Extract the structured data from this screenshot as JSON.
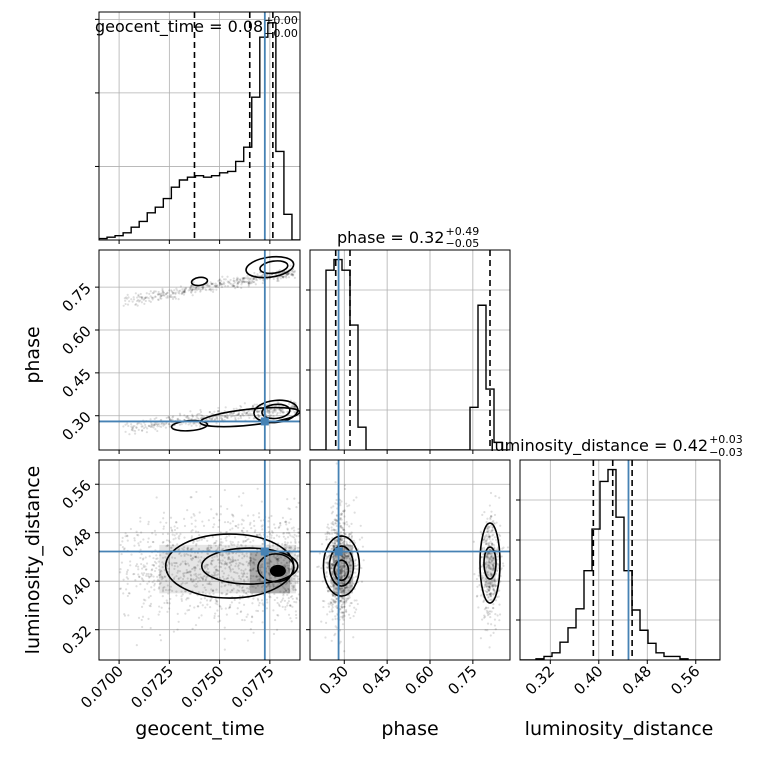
{
  "chart_data": {
    "type": "corner",
    "parameters": [
      {
        "name": "geocent_time",
        "axis_label": "geocent_time",
        "range": [
          0.069,
          0.079
        ],
        "ticks": [
          0.07,
          0.0725,
          0.075,
          0.0775
        ],
        "tick_labels": [
          "0.0700",
          "0.0725",
          "0.0750",
          "0.0775"
        ],
        "title": {
          "text": "geocent_time = 0.08",
          "sup": "+0.00",
          "sub": "−0.00"
        },
        "truth": 0.07725,
        "quantiles": [
          0.07375,
          0.0765,
          0.07765
        ],
        "histogram": {
          "bin_edges": [
            0.069,
            0.0694,
            0.0698,
            0.0702,
            0.0706,
            0.071,
            0.0714,
            0.0718,
            0.0722,
            0.0726,
            0.073,
            0.0734,
            0.0738,
            0.0742,
            0.0746,
            0.075,
            0.0754,
            0.0758,
            0.0762,
            0.0766,
            0.077,
            0.0774,
            0.0778,
            0.0782,
            0.0786,
            0.079
          ],
          "counts": [
            1,
            2,
            3,
            5,
            9,
            13,
            19,
            23,
            29,
            37,
            42,
            44,
            45,
            44,
            45,
            47,
            48,
            55,
            65,
            100,
            142,
            152,
            62,
            18,
            0
          ]
        }
      },
      {
        "name": "phase",
        "axis_label": "phase",
        "range": [
          0.18,
          0.88
        ],
        "ticks": [
          0.3,
          0.45,
          0.6,
          0.75
        ],
        "tick_labels": [
          "0.30",
          "0.45",
          "0.60",
          "0.75"
        ],
        "title": {
          "text": "phase = 0.32",
          "sup": "+0.49",
          "sub": "−0.05"
        },
        "truth": 0.28,
        "quantiles": [
          0.27,
          0.32,
          0.81
        ],
        "histogram": {
          "bin_edges": [
            0.18,
            0.208,
            0.236,
            0.264,
            0.292,
            0.32,
            0.348,
            0.376,
            0.404,
            0.432,
            0.46,
            0.488,
            0.516,
            0.544,
            0.572,
            0.6,
            0.628,
            0.656,
            0.684,
            0.712,
            0.74,
            0.768,
            0.796,
            0.824,
            0.852,
            0.88
          ],
          "counts": [
            0,
            0,
            118,
            125,
            118,
            82,
            15,
            0,
            0,
            0,
            0,
            0,
            0,
            0,
            0,
            0,
            0,
            0,
            0,
            0,
            28,
            95,
            40,
            5,
            0
          ]
        }
      },
      {
        "name": "luminosity_distance",
        "axis_label": "luminosity_distance",
        "range": [
          0.27,
          0.6
        ],
        "ticks": [
          0.32,
          0.4,
          0.48,
          0.56
        ],
        "tick_labels": [
          "0.32",
          "0.40",
          "0.48",
          "0.56"
        ],
        "title": {
          "text": "luminosity_distance = 0.42",
          "sup": "+0.03",
          "sub": "−0.03"
        },
        "truth": 0.449,
        "quantiles": [
          0.391,
          0.423,
          0.455
        ],
        "histogram": {
          "bin_edges": [
            0.27,
            0.2832,
            0.2964,
            0.3096,
            0.3228,
            0.336,
            0.3492,
            0.3624,
            0.3756,
            0.3888,
            0.402,
            0.4152,
            0.4284,
            0.4416,
            0.4548,
            0.468,
            0.4812,
            0.4944,
            0.5076,
            0.5208,
            0.534,
            0.5472,
            0.5604,
            0.5736,
            0.5868,
            0.6
          ],
          "counts": [
            0,
            0,
            1,
            3,
            6,
            15,
            27,
            43,
            75,
            110,
            150,
            160,
            120,
            75,
            42,
            25,
            14,
            6,
            3,
            3,
            1,
            0,
            0,
            0,
            0
          ]
        }
      }
    ],
    "truth_color": "#4682b4",
    "grid": true,
    "contour_levels": 3
  }
}
